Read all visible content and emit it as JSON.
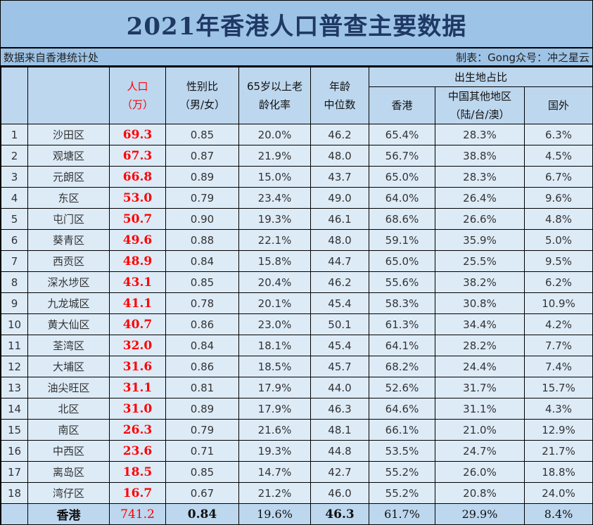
{
  "title": "2021年香港人口普查主要数据",
  "source_note": "数据来自香港统计处",
  "credit_note": "制表：Gong众号：冲之星云",
  "headers": {
    "index": "",
    "district": "",
    "population_line1": "人口",
    "population_line2": "（万）",
    "sex_ratio_line1": "性别比",
    "sex_ratio_line2": "（男/女）",
    "aging_line1": "65岁以上老",
    "aging_line2": "龄化率",
    "median_age_line1": "年龄",
    "median_age_line2": "中位数",
    "birthplace_group": "出生地占比",
    "birthplace_hk": "香港",
    "birthplace_china_line1": "中国其他地区",
    "birthplace_china_line2": "（陆/台/澳）",
    "birthplace_foreign": "国外"
  },
  "colors": {
    "title_bg": "#9dc3e6",
    "header_bg": "#bdd7ee",
    "row_bg": "#ddebf7",
    "title_text": "#1f3864",
    "population_text": "#ff0000"
  },
  "rows": [
    {
      "rank": "1",
      "district": "沙田区",
      "population": "69.3",
      "sex_ratio": "0.85",
      "aging": "20.0%",
      "median_age": "46.2",
      "hk": "65.4%",
      "china": "28.3%",
      "foreign": "6.3%"
    },
    {
      "rank": "2",
      "district": "观塘区",
      "population": "67.3",
      "sex_ratio": "0.87",
      "aging": "21.9%",
      "median_age": "48.0",
      "hk": "56.7%",
      "china": "38.8%",
      "foreign": "4.5%"
    },
    {
      "rank": "3",
      "district": "元朗区",
      "population": "66.8",
      "sex_ratio": "0.89",
      "aging": "15.0%",
      "median_age": "43.7",
      "hk": "65.0%",
      "china": "28.3%",
      "foreign": "6.7%"
    },
    {
      "rank": "4",
      "district": "东区",
      "population": "53.0",
      "sex_ratio": "0.79",
      "aging": "23.4%",
      "median_age": "49.0",
      "hk": "64.0%",
      "china": "26.4%",
      "foreign": "9.6%"
    },
    {
      "rank": "5",
      "district": "屯门区",
      "population": "50.7",
      "sex_ratio": "0.90",
      "aging": "19.3%",
      "median_age": "46.1",
      "hk": "68.6%",
      "china": "26.6%",
      "foreign": "4.8%"
    },
    {
      "rank": "6",
      "district": "葵青区",
      "population": "49.6",
      "sex_ratio": "0.88",
      "aging": "22.1%",
      "median_age": "48.0",
      "hk": "59.1%",
      "china": "35.9%",
      "foreign": "5.0%"
    },
    {
      "rank": "7",
      "district": "西贡区",
      "population": "48.9",
      "sex_ratio": "0.84",
      "aging": "15.8%",
      "median_age": "44.7",
      "hk": "65.0%",
      "china": "25.5%",
      "foreign": "9.5%"
    },
    {
      "rank": "8",
      "district": "深水埗区",
      "population": "43.1",
      "sex_ratio": "0.85",
      "aging": "20.4%",
      "median_age": "46.2",
      "hk": "55.6%",
      "china": "38.2%",
      "foreign": "6.2%"
    },
    {
      "rank": "9",
      "district": "九龙城区",
      "population": "41.1",
      "sex_ratio": "0.78",
      "aging": "20.1%",
      "median_age": "45.4",
      "hk": "58.3%",
      "china": "30.8%",
      "foreign": "10.9%"
    },
    {
      "rank": "10",
      "district": "黄大仙区",
      "population": "40.7",
      "sex_ratio": "0.86",
      "aging": "23.0%",
      "median_age": "50.1",
      "hk": "61.3%",
      "china": "34.4%",
      "foreign": "4.2%"
    },
    {
      "rank": "11",
      "district": "荃湾区",
      "population": "32.0",
      "sex_ratio": "0.84",
      "aging": "18.1%",
      "median_age": "45.4",
      "hk": "64.1%",
      "china": "28.2%",
      "foreign": "7.7%"
    },
    {
      "rank": "12",
      "district": "大埔区",
      "population": "31.6",
      "sex_ratio": "0.86",
      "aging": "18.5%",
      "median_age": "45.7",
      "hk": "68.2%",
      "china": "24.4%",
      "foreign": "7.4%"
    },
    {
      "rank": "13",
      "district": "油尖旺区",
      "population": "31.1",
      "sex_ratio": "0.81",
      "aging": "17.9%",
      "median_age": "44.0",
      "hk": "52.6%",
      "china": "31.7%",
      "foreign": "15.7%"
    },
    {
      "rank": "14",
      "district": "北区",
      "population": "31.0",
      "sex_ratio": "0.89",
      "aging": "17.9%",
      "median_age": "46.3",
      "hk": "64.6%",
      "china": "31.1%",
      "foreign": "4.3%"
    },
    {
      "rank": "15",
      "district": "南区",
      "population": "26.3",
      "sex_ratio": "0.79",
      "aging": "21.6%",
      "median_age": "48.1",
      "hk": "66.1%",
      "china": "21.0%",
      "foreign": "12.9%"
    },
    {
      "rank": "16",
      "district": "中西区",
      "population": "23.6",
      "sex_ratio": "0.71",
      "aging": "19.3%",
      "median_age": "44.8",
      "hk": "53.5%",
      "china": "24.7%",
      "foreign": "21.7%"
    },
    {
      "rank": "17",
      "district": "离岛区",
      "population": "18.5",
      "sex_ratio": "0.85",
      "aging": "14.7%",
      "median_age": "42.7",
      "hk": "55.2%",
      "china": "26.0%",
      "foreign": "18.8%"
    },
    {
      "rank": "18",
      "district": "湾仔区",
      "population": "16.7",
      "sex_ratio": "0.67",
      "aging": "21.2%",
      "median_age": "46.0",
      "hk": "55.2%",
      "china": "20.8%",
      "foreign": "24.0%"
    }
  ],
  "total": {
    "rank": "",
    "district": "香港",
    "population": "741.2",
    "sex_ratio": "0.84",
    "aging": "19.6%",
    "median_age": "46.3",
    "hk": "61.7%",
    "china": "29.9%",
    "foreign": "8.4%"
  }
}
